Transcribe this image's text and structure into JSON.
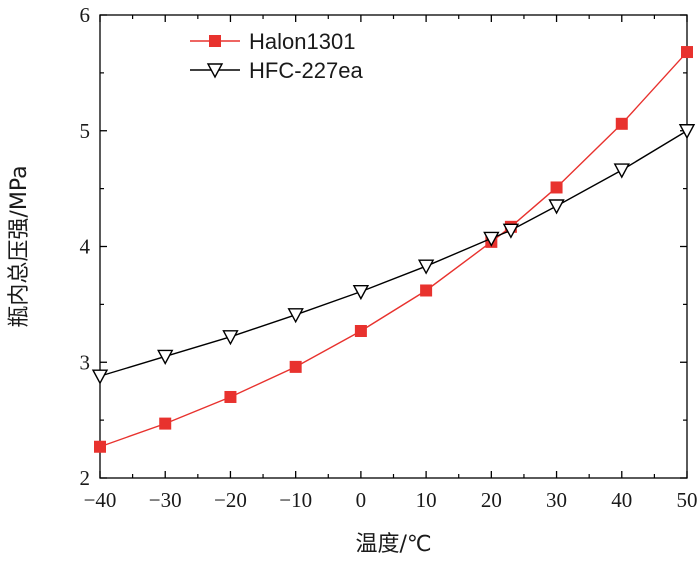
{
  "chart_data": {
    "type": "line",
    "title": "",
    "xlabel": "温度/℃",
    "ylabel": "瓶内总压强/MPa",
    "xlim": [
      -40,
      50
    ],
    "ylim": [
      2,
      6
    ],
    "xticks": [
      -40,
      -30,
      -20,
      -10,
      0,
      10,
      20,
      30,
      40,
      50
    ],
    "yticks": [
      2,
      3,
      4,
      5,
      6
    ],
    "xtick_labels": [
      "−40",
      "−30",
      "−20",
      "−10",
      "0",
      "10",
      "20",
      "30",
      "40",
      "50"
    ],
    "ytick_labels": [
      "2",
      "3",
      "4",
      "5",
      "6"
    ],
    "grid": false,
    "legend_position": "top-left",
    "series": [
      {
        "name": "Halon1301",
        "color": "#e8322e",
        "marker": "filled-square",
        "x": [
          -40,
          -30,
          -20,
          -10,
          0,
          10,
          20,
          23,
          30,
          40,
          50
        ],
        "y": [
          2.27,
          2.47,
          2.7,
          2.96,
          3.27,
          3.62,
          4.04,
          4.17,
          4.51,
          5.06,
          5.68
        ]
      },
      {
        "name": "HFC-227ea",
        "color": "#000000",
        "marker": "open-triangle-down",
        "x": [
          -40,
          -30,
          -20,
          -10,
          0,
          10,
          20,
          23,
          30,
          40,
          50
        ],
        "y": [
          2.88,
          3.05,
          3.22,
          3.41,
          3.61,
          3.83,
          4.07,
          4.14,
          4.35,
          4.66,
          5.0
        ]
      }
    ]
  }
}
